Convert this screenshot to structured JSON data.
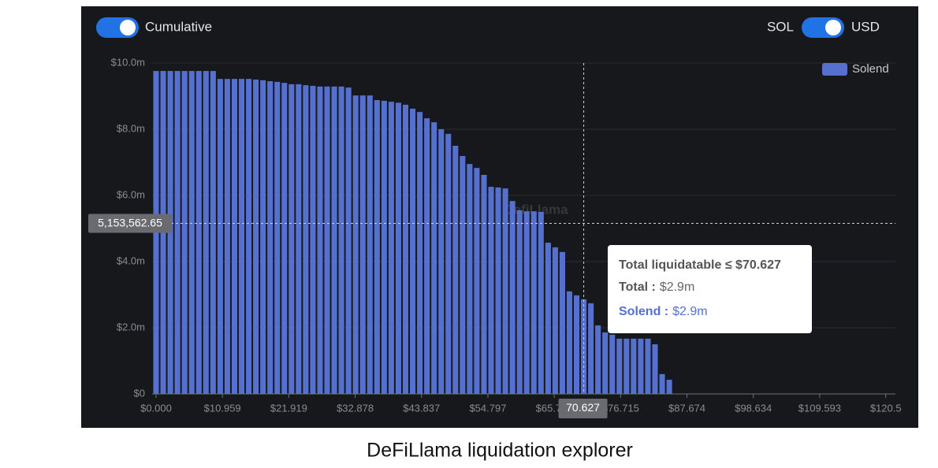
{
  "controls": {
    "cumulative": "Cumulative",
    "sol": "SOL",
    "usd": "USD"
  },
  "chart_data": {
    "type": "bar",
    "series": [
      {
        "name": "Solend",
        "color": "#5670d0",
        "values": [
          9760000,
          9760000,
          9760000,
          9760000,
          9760000,
          9760000,
          9760000,
          9760000,
          9760000,
          9520000,
          9520000,
          9520000,
          9520000,
          9520000,
          9500000,
          9480000,
          9450000,
          9430000,
          9400000,
          9360000,
          9360000,
          9330000,
          9310000,
          9290000,
          9290000,
          9290000,
          9290000,
          9260000,
          9020000,
          9020000,
          9020000,
          8880000,
          8860000,
          8830000,
          8800000,
          8740000,
          8620000,
          8520000,
          8330000,
          8210000,
          8000000,
          7860000,
          7500000,
          7190000,
          6950000,
          6830000,
          6620000,
          6260000,
          6240000,
          6210000,
          5830000,
          5550000,
          5520000,
          5520000,
          5500000,
          4570000,
          4430000,
          4290000,
          3100000,
          2980000,
          2860000,
          2740000,
          2070000,
          1860000,
          1790000,
          1670000,
          1670000,
          1670000,
          1670000,
          1670000,
          1500000,
          600000,
          430000
        ]
      }
    ],
    "x": [
      0,
      1.177,
      2.354,
      3.531,
      4.708,
      5.886,
      7.063,
      8.24,
      9.417,
      10.594,
      11.771,
      12.948,
      14.125,
      15.303,
      16.48,
      17.657,
      18.834,
      20.011,
      21.188,
      22.365,
      23.542,
      24.72,
      25.897,
      27.074,
      28.251,
      29.428,
      30.605,
      31.782,
      32.959,
      34.136,
      35.314,
      36.491,
      37.668,
      38.845,
      40.022,
      41.199,
      42.376,
      43.553,
      44.731,
      45.908,
      47.085,
      48.262,
      49.439,
      50.616,
      51.793,
      52.97,
      54.148,
      55.325,
      56.502,
      57.679,
      58.856,
      60.033,
      61.21,
      62.387,
      63.564,
      64.742,
      65.919,
      67.096,
      68.273,
      69.45,
      70.627,
      71.804,
      72.981,
      74.159,
      75.336,
      76.513,
      77.69,
      78.867,
      80.044,
      81.221,
      82.398,
      83.576,
      84.753
    ],
    "xlim": [
      -0.65,
      122.1
    ],
    "xticks": [
      {
        "value": 0,
        "label": "$0.000"
      },
      {
        "value": 10.959,
        "label": "$10.959"
      },
      {
        "value": 21.919,
        "label": "$21.919"
      },
      {
        "value": 32.878,
        "label": "$32.878"
      },
      {
        "value": 43.837,
        "label": "$43.837"
      },
      {
        "value": 54.797,
        "label": "$54.797"
      },
      {
        "value": 65.756,
        "label": "$65.756"
      },
      {
        "value": 76.715,
        "label": "$76.715"
      },
      {
        "value": 87.674,
        "label": "$87.674"
      },
      {
        "value": 98.634,
        "label": "$98.634"
      },
      {
        "value": 109.593,
        "label": "$109.593"
      },
      {
        "value": 120.5,
        "label": "$120.5"
      }
    ],
    "ylim": [
      0,
      10000000
    ],
    "yticks": [
      {
        "value": 0,
        "label": "$0"
      },
      {
        "value": 2000000,
        "label": "$2.0m"
      },
      {
        "value": 4000000,
        "label": "$4.0m"
      },
      {
        "value": 6000000,
        "label": "$6.0m"
      },
      {
        "value": 8000000,
        "label": "$8.0m"
      },
      {
        "value": 10000000,
        "label": "$10.0m"
      }
    ],
    "grid": true,
    "legend": "top-right",
    "crosshair": {
      "x": 70.627,
      "y": {
        "value": 5153562.65,
        "label": "5,153,562.65"
      }
    },
    "tooltip": {
      "title": "Total liquidatable ≤ $70.627",
      "rows": [
        {
          "name": "Total :",
          "value": "$2.9m"
        },
        {
          "name": "Solend :",
          "value": "$2.9m"
        }
      ]
    },
    "watermark": "DefiLlama"
  },
  "caption": "DeFiLlama liquidation explorer"
}
